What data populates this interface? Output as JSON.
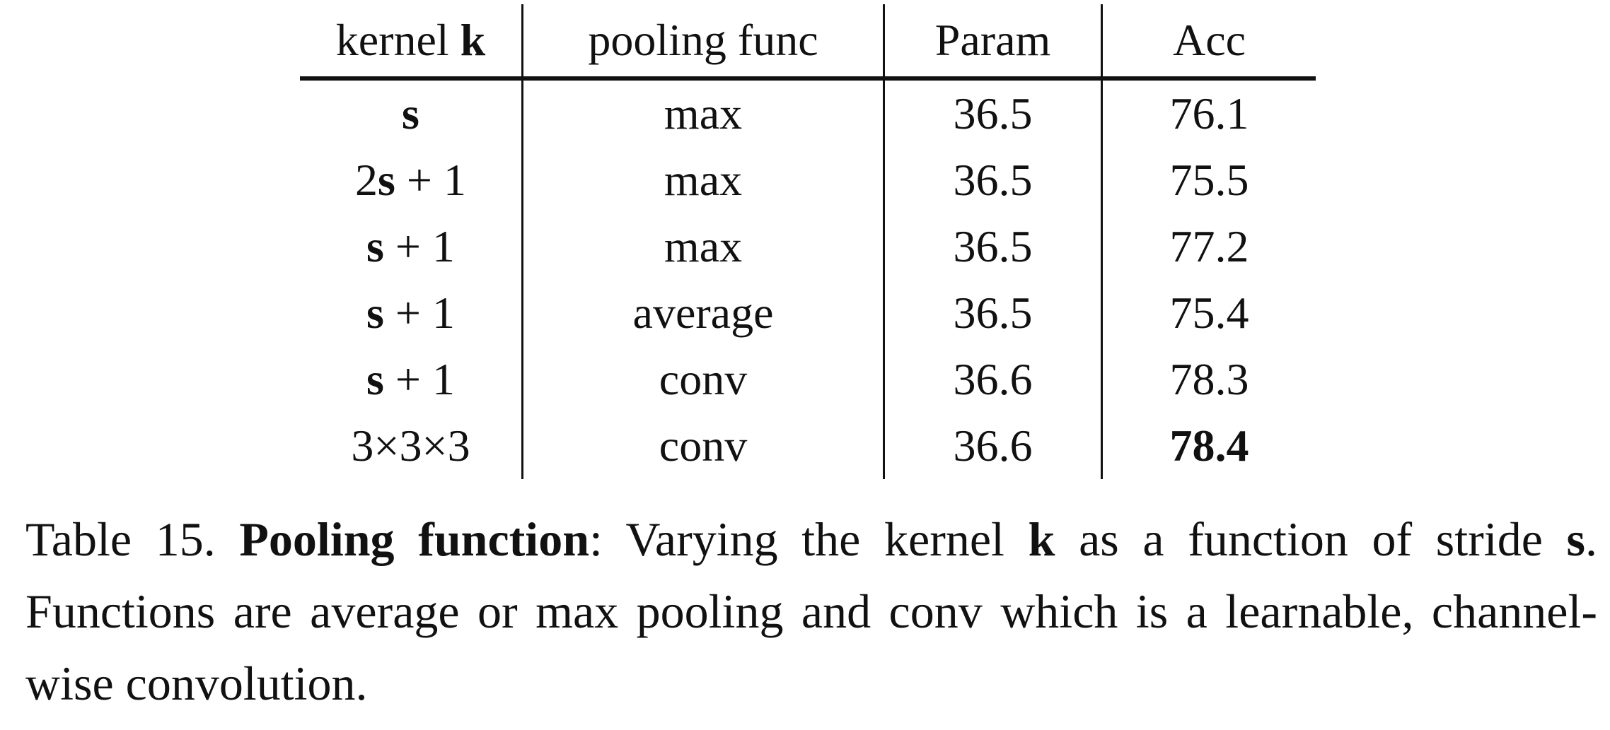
{
  "table": {
    "header": [
      [
        "kernel ",
        "k"
      ],
      "pooling func",
      "Param",
      "Acc"
    ],
    "rows": [
      [
        [
          "s"
        ],
        "max",
        36.5,
        76.1
      ],
      [
        [
          "2",
          "s",
          " + 1"
        ],
        "max",
        36.5,
        75.5
      ],
      [
        [
          "s",
          " + 1"
        ],
        "max",
        36.5,
        77.2
      ],
      [
        [
          "s",
          " + 1"
        ],
        "average",
        36.5,
        75.4
      ],
      [
        [
          "s",
          " + 1"
        ],
        "conv",
        36.6,
        78.3
      ],
      [
        [
          "3×3×3"
        ],
        "conv",
        36.6,
        78.4
      ]
    ]
  },
  "caption": {
    "label": "Table 15.",
    "title": "Pooling function",
    "parts": [
      ": Varying the kernel ",
      "k",
      " as a function of stride ",
      "s",
      ". Functions are average or max pooling and conv which is a learnable, channel-wise convolution."
    ]
  }
}
